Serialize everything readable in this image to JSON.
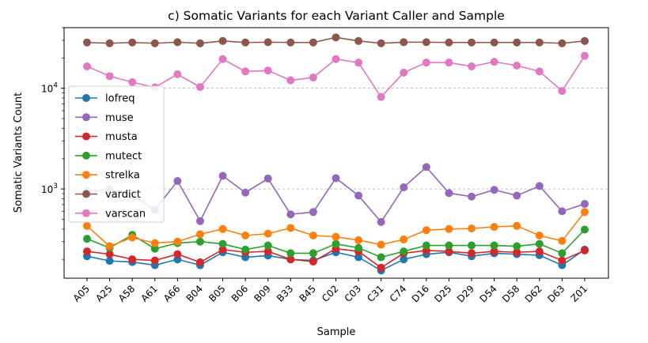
{
  "chart_data": {
    "type": "line",
    "title": "c) Somatic Variants for each Variant Caller and Sample",
    "xlabel": "Sample",
    "ylabel": "Somatic Variants Count",
    "yscale": "log",
    "ylim": [
      130,
      40000
    ],
    "yticks": [
      {
        "value": 1000,
        "base": "10",
        "exp": "3"
      },
      {
        "value": 10000,
        "base": "10",
        "exp": "4"
      }
    ],
    "grid": "horizontal dashed at major ticks",
    "legend_position": "left",
    "categories": [
      "A05",
      "A25",
      "A58",
      "A61",
      "A66",
      "B04",
      "B05",
      "B06",
      "B09",
      "B33",
      "B45",
      "C02",
      "C03",
      "C31",
      "C74",
      "D16",
      "D25",
      "D29",
      "D54",
      "D58",
      "D62",
      "D63",
      "Z01"
    ],
    "series": [
      {
        "name": "lofreq",
        "color": "#1f77b4",
        "values": [
          215,
          193,
          188,
          175,
          200,
          175,
          235,
          210,
          218,
          200,
          195,
          235,
          210,
          155,
          200,
          225,
          235,
          215,
          230,
          225,
          220,
          175,
          250
        ]
      },
      {
        "name": "muse",
        "color": "#9467bd",
        "values": [
          950,
          990,
          860,
          620,
          1200,
          480,
          1350,
          920,
          1270,
          560,
          590,
          1280,
          860,
          470,
          1040,
          1650,
          910,
          840,
          980,
          860,
          1070,
          600,
          710
        ]
      },
      {
        "name": "musta",
        "color": "#d62728",
        "values": [
          240,
          225,
          200,
          195,
          225,
          187,
          250,
          235,
          240,
          200,
          190,
          255,
          240,
          165,
          230,
          245,
          240,
          230,
          240,
          235,
          240,
          195,
          245
        ]
      },
      {
        "name": "mutect",
        "color": "#2ca02c",
        "values": [
          320,
          260,
          350,
          255,
          290,
          300,
          285,
          250,
          275,
          230,
          230,
          285,
          260,
          210,
          240,
          275,
          275,
          275,
          275,
          270,
          285,
          230,
          395
        ]
      },
      {
        "name": "strelka",
        "color": "#ff7f0e",
        "values": [
          430,
          270,
          330,
          290,
          300,
          355,
          400,
          345,
          360,
          410,
          345,
          335,
          310,
          280,
          315,
          390,
          400,
          405,
          420,
          430,
          345,
          305,
          590
        ]
      },
      {
        "name": "vardict",
        "color": "#8c564b",
        "values": [
          28500,
          28000,
          28500,
          28000,
          28700,
          28000,
          29500,
          28500,
          28700,
          28500,
          28500,
          32000,
          29500,
          28000,
          28700,
          28700,
          28500,
          28500,
          28500,
          28500,
          28500,
          28000,
          29500
        ]
      },
      {
        "name": "varscan",
        "color": "#e377c2",
        "values": [
          16500,
          13200,
          11500,
          10200,
          13800,
          10300,
          19500,
          14700,
          15000,
          12000,
          12800,
          19500,
          18000,
          8200,
          14300,
          18000,
          18000,
          16500,
          18300,
          16800,
          14700,
          9400,
          21000
        ]
      }
    ]
  }
}
